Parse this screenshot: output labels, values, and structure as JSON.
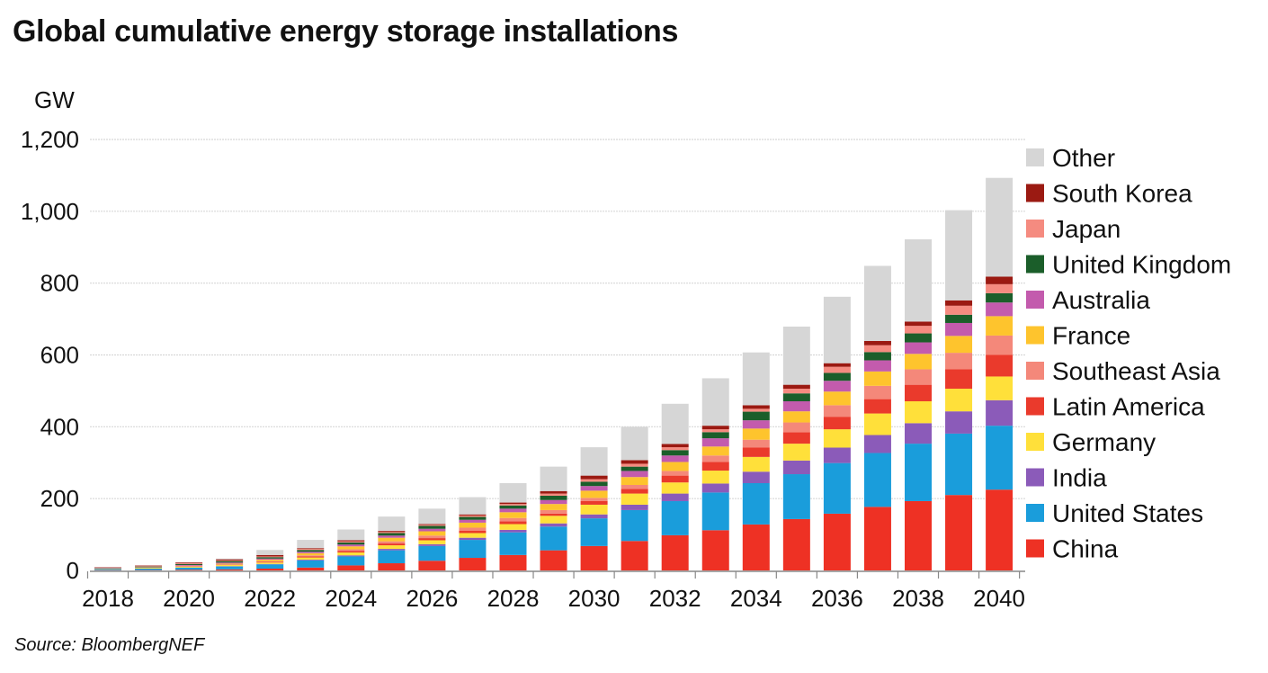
{
  "chart_data": {
    "type": "bar",
    "stacked": true,
    "title": "Global cumulative energy storage installations",
    "ylabel": "GW",
    "xlabel": "",
    "source": "Source: BloombergNEF",
    "ylim": [
      0,
      1200
    ],
    "yticks": [
      0,
      200,
      400,
      600,
      800,
      1000,
      1200
    ],
    "ytick_labels": [
      "0",
      "200",
      "400",
      "600",
      "800",
      "1,000",
      "1,200"
    ],
    "grid": true,
    "legend_position": "right",
    "categories": [
      2018,
      2019,
      2020,
      2021,
      2022,
      2023,
      2024,
      2025,
      2026,
      2027,
      2028,
      2029,
      2030,
      2031,
      2032,
      2033,
      2034,
      2035,
      2036,
      2037,
      2038,
      2039,
      2040
    ],
    "xtick_labels": [
      "2018",
      "2020",
      "2022",
      "2024",
      "2026",
      "2028",
      "2030",
      "2032",
      "2034",
      "2036",
      "2038",
      "2040"
    ],
    "series": [
      {
        "name": "China",
        "color": "#ee3124",
        "values": [
          1,
          1,
          2,
          3,
          5,
          8,
          14,
          20,
          27,
          35,
          43,
          56,
          68,
          82,
          98,
          112,
          128,
          143,
          158,
          177,
          193,
          210,
          225
        ]
      },
      {
        "name": "United States",
        "color": "#1a9ddb",
        "values": [
          3,
          4,
          6,
          8,
          12,
          20,
          25,
          36,
          41,
          50,
          63,
          66,
          77,
          86,
          95,
          105,
          115,
          125,
          141,
          150,
          160,
          171,
          178
        ]
      },
      {
        "name": "India",
        "color": "#8b5bb9",
        "values": [
          0,
          0,
          0,
          1,
          1,
          2,
          3,
          4,
          5,
          6,
          7,
          9,
          11,
          15,
          21,
          25,
          32,
          38,
          43,
          50,
          57,
          62,
          71
        ]
      },
      {
        "name": "Germany",
        "color": "#ffe03a",
        "values": [
          1,
          2,
          2,
          3,
          4,
          6,
          8,
          10,
          11,
          13,
          16,
          21,
          27,
          31,
          31,
          36,
          41,
          47,
          51,
          60,
          61,
          63,
          66
        ]
      },
      {
        "name": "Latin America",
        "color": "#ea3a2c",
        "values": [
          0,
          0,
          1,
          1,
          2,
          3,
          4,
          5,
          6,
          7,
          8,
          6,
          10,
          13,
          19,
          24,
          26,
          32,
          35,
          40,
          46,
          54,
          60
        ]
      },
      {
        "name": "Southeast Asia",
        "color": "#f4887a",
        "values": [
          0,
          0,
          1,
          1,
          2,
          3,
          5,
          6,
          7,
          8,
          9,
          10,
          9,
          11,
          13,
          18,
          22,
          27,
          32,
          37,
          43,
          46,
          54
        ]
      },
      {
        "name": "France",
        "color": "#fec42d",
        "values": [
          0,
          1,
          1,
          2,
          4,
          6,
          8,
          10,
          12,
          14,
          16,
          17,
          20,
          22,
          25,
          25,
          31,
          31,
          38,
          40,
          43,
          47,
          54
        ]
      },
      {
        "name": "Australia",
        "color": "#c35bad",
        "values": [
          1,
          1,
          2,
          3,
          3,
          4,
          5,
          6,
          7,
          8,
          10,
          11,
          13,
          17,
          18,
          23,
          23,
          28,
          30,
          31,
          32,
          36,
          38
        ]
      },
      {
        "name": "United Kingdom",
        "color": "#1b5e2a",
        "values": [
          1,
          2,
          3,
          4,
          4,
          5,
          6,
          7,
          8,
          8,
          9,
          12,
          12,
          12,
          15,
          17,
          24,
          22,
          22,
          23,
          25,
          23,
          26
        ]
      },
      {
        "name": "Japan",
        "color": "#f58b80",
        "values": [
          1,
          2,
          2,
          2,
          2,
          3,
          3,
          3,
          3,
          4,
          4,
          6,
          7,
          8,
          8,
          8,
          8,
          13,
          17,
          19,
          21,
          25,
          25
        ]
      },
      {
        "name": "South Korea",
        "color": "#9b1a12",
        "values": [
          1,
          1,
          2,
          3,
          4,
          2,
          3,
          3,
          2,
          3,
          4,
          7,
          10,
          10,
          9,
          10,
          10,
          11,
          10,
          12,
          12,
          15,
          21
        ]
      },
      {
        "name": "Other",
        "color": "#d6d6d6",
        "values": [
          0,
          0,
          0,
          2,
          14,
          23,
          30,
          40,
          43,
          48,
          54,
          68,
          79,
          93,
          112,
          132,
          147,
          162,
          185,
          209,
          229,
          251,
          275
        ]
      }
    ]
  }
}
